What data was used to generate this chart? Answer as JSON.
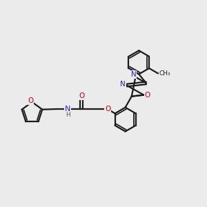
{
  "background_color": "#ebebeb",
  "bond_color": "#1a1a1a",
  "N_color": "#2020ee",
  "O_color": "#cc0000",
  "H_color": "#555555",
  "figsize": [
    3.0,
    3.0
  ],
  "dpi": 100,
  "xlim": [
    0,
    10
  ],
  "ylim": [
    0,
    10
  ]
}
